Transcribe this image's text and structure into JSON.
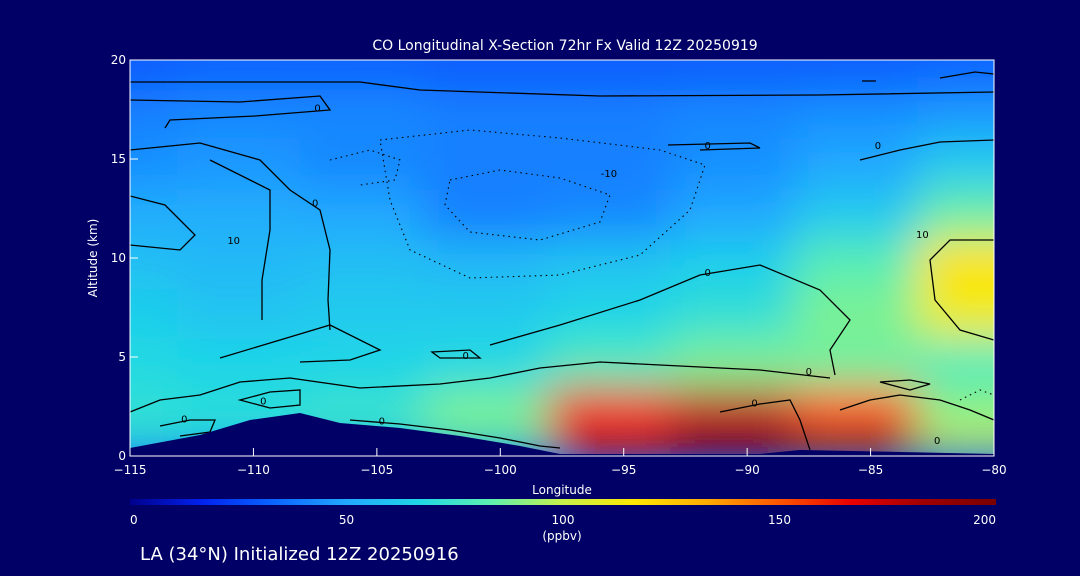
{
  "chart_data": {
    "type": "heatmap",
    "title": "CO Longitudinal X-Section 72hr  Fx Valid 12Z 20250919",
    "xlabel": "Longitude",
    "ylabel": "Altitude (km)",
    "xlim": [
      -115,
      -80
    ],
    "ylim": [
      0,
      20
    ],
    "x_ticks": [
      -115,
      -110,
      -105,
      -100,
      -95,
      -90,
      -85,
      -80
    ],
    "x_tick_labels": [
      "−115",
      "−110",
      "−105",
      "−100",
      "−95",
      "−90",
      "−85",
      "−80"
    ],
    "y_ticks": [
      0,
      5,
      10,
      15,
      20
    ],
    "y_tick_labels": [
      "0",
      "5",
      "10",
      "15",
      "20"
    ],
    "grid": false,
    "colorbar": {
      "range": [
        0,
        200
      ],
      "ticks": [
        0,
        50,
        100,
        150,
        200
      ],
      "tick_labels": [
        "0",
        "50",
        "100",
        "150",
        "200"
      ],
      "units": "(ppbv)",
      "colors": [
        "#00008c",
        "#0022ee",
        "#0a66ff",
        "#22a8ff",
        "#1fd7e6",
        "#5ef0b0",
        "#c8f24a",
        "#ffe800",
        "#ffaa00",
        "#ff5500",
        "#e80000",
        "#a00000",
        "#7a0000"
      ]
    },
    "fields": {
      "longitudes": [
        -115,
        -110,
        -105,
        -100,
        -95,
        -90,
        -85,
        -80
      ],
      "altitudes_km": [
        1,
        2.5,
        5,
        7.5,
        10,
        12.5,
        15,
        17.5,
        19.5
      ],
      "co_ppbv": [
        [
          72,
          70,
          72,
          82,
          165,
          190,
          180,
          105
        ],
        [
          72,
          70,
          74,
          88,
          160,
          175,
          150,
          90
        ],
        [
          68,
          66,
          66,
          68,
          80,
          88,
          86,
          80
        ],
        [
          64,
          60,
          62,
          62,
          66,
          72,
          88,
          112
        ],
        [
          58,
          56,
          58,
          56,
          60,
          64,
          82,
          118
        ],
        [
          52,
          52,
          50,
          40,
          42,
          50,
          62,
          85
        ],
        [
          44,
          46,
          42,
          40,
          40,
          44,
          50,
          62
        ],
        [
          40,
          42,
          42,
          40,
          40,
          42,
          44,
          46
        ],
        [
          30,
          32,
          32,
          30,
          30,
          30,
          30,
          32
        ]
      ]
    },
    "contour_labels": [
      {
        "text": "0",
        "lon": -107.4,
        "alt": 17.4
      },
      {
        "text": "0",
        "lon": -107.5,
        "alt": 12.6
      },
      {
        "text": "10",
        "lon": -110.8,
        "alt": 10.7
      },
      {
        "text": "-10",
        "lon": -95.6,
        "alt": 14.1
      },
      {
        "text": "0",
        "lon": -91.6,
        "alt": 15.5
      },
      {
        "text": "0",
        "lon": -84.7,
        "alt": 15.5
      },
      {
        "text": "10",
        "lon": -82.9,
        "alt": 11.0
      },
      {
        "text": "0",
        "lon": -91.6,
        "alt": 9.1
      },
      {
        "text": "0",
        "lon": -101.4,
        "alt": 4.9
      },
      {
        "text": "0",
        "lon": -87.5,
        "alt": 4.1
      },
      {
        "text": "0",
        "lon": -109.6,
        "alt": 2.6
      },
      {
        "text": "0",
        "lon": -112.8,
        "alt": 1.7
      },
      {
        "text": "0",
        "lon": -104.8,
        "alt": 1.6
      },
      {
        "text": "0",
        "lon": -89.7,
        "alt": 2.5
      },
      {
        "text": "0",
        "lon": -82.3,
        "alt": 0.6
      }
    ],
    "footer": "LA (34°N) Initialized 12Z 20250916"
  }
}
